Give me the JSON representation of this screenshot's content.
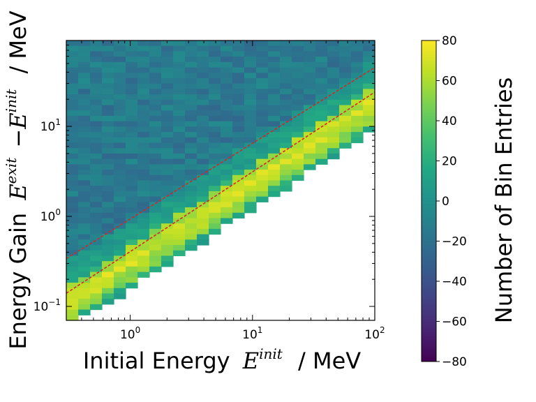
{
  "chart_data": {
    "type": "heatmap",
    "title": "",
    "xlabel": "Initial Energy E^init / MeV",
    "ylabel": "Energy Gain E^exit − E^init / MeV",
    "xscale": "log",
    "yscale": "log",
    "xlim": [
      0.3,
      100
    ],
    "ylim": [
      0.07,
      90
    ],
    "x_ticks": [
      {
        "base": "10",
        "exp": "0",
        "value": 1
      },
      {
        "base": "10",
        "exp": "1",
        "value": 10
      },
      {
        "base": "10",
        "exp": "2",
        "value": 100
      }
    ],
    "y_ticks": [
      {
        "base": "10",
        "exp": "−1",
        "value": 0.1
      },
      {
        "base": "10",
        "exp": "0",
        "value": 1
      },
      {
        "base": "10",
        "exp": "1",
        "value": 10
      }
    ],
    "x_label_parts": {
      "prefix": "Initial Energy",
      "sym": "E",
      "sup": "init",
      "unit": "/ MeV"
    },
    "y_label_parts": {
      "prefix": "Energy Gain",
      "sym1": "E",
      "sup1": "exit",
      "minus": "−",
      "sym2": "E",
      "sup2": "init",
      "unit": "/ MeV"
    },
    "colorbar": {
      "label": "Number of Bin Entries",
      "min": -80,
      "max": 80,
      "ticks": [
        80,
        60,
        40,
        20,
        0,
        -20,
        -40,
        -60,
        -80
      ],
      "tick_labels": [
        "80",
        "60",
        "40",
        "20",
        "0",
        "−20",
        "−40",
        "−60",
        "−80"
      ],
      "colormap": "viridis"
    },
    "grid": {
      "x_bins": 26,
      "y_bins": 52,
      "description": "Background bins with values mostly between -20 and 0; high-density band (values 30 to 75) follows the diagonal between the two guide lines and the lower cutoff boundary"
    },
    "reference_lines": [
      {
        "name": "upper-dashed-line",
        "color": "#d62728",
        "style": "dashed",
        "points": [
          [
            0.3,
            0.34
          ],
          [
            100,
            45
          ]
        ]
      },
      {
        "name": "lower-dashed-line",
        "color": "#d62728",
        "style": "dashed",
        "points": [
          [
            0.3,
            0.14
          ],
          [
            100,
            24
          ]
        ]
      }
    ]
  }
}
